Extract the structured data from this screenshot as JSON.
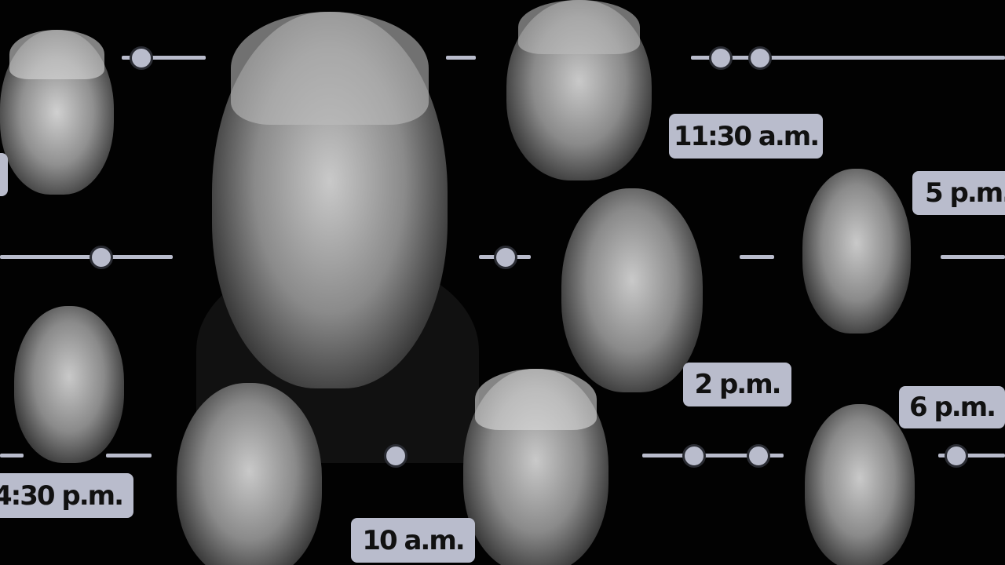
{
  "timeline": {
    "labels": [
      "11:30 a.m.",
      "5 p.m.",
      "2 p.m.",
      "6 p.m.",
      "4:30 p.m.",
      "10 a.m."
    ],
    "label_color": "#b9bccc",
    "line_color": "#b9bccc",
    "background": "#020202"
  }
}
